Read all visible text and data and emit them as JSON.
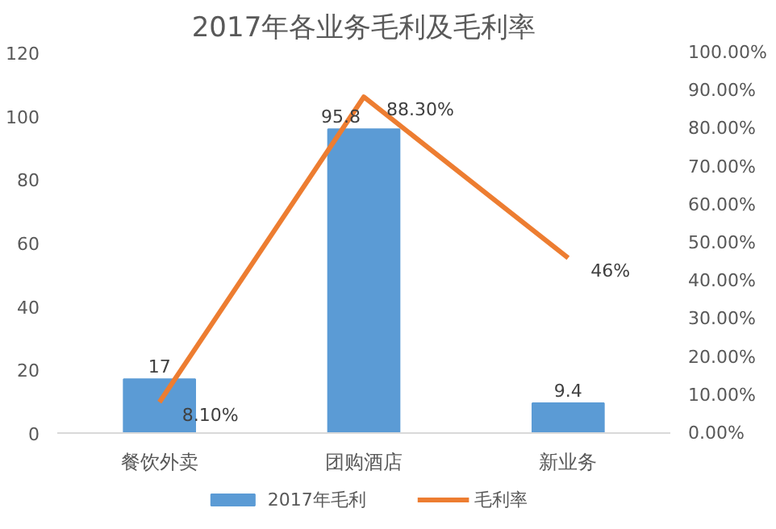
{
  "chart_data": {
    "type": "bar",
    "title": "2017年各业务毛利及毛利率",
    "categories": [
      "餐饮外卖",
      "团购酒店",
      "新业务"
    ],
    "series": [
      {
        "name": "2017年毛利",
        "color": "#5b9bd5",
        "values": [
          17,
          95.8,
          9.4
        ],
        "value_labels": [
          "17",
          "95.8",
          "9.4"
        ]
      },
      {
        "name": "毛利率",
        "type": "line",
        "axis": "y2",
        "color": "#ed7d31",
        "values": [
          8.1,
          88.3,
          46
        ],
        "value_labels": [
          "8.10%",
          "88.30%",
          "46%"
        ]
      }
    ],
    "ylim": [
      0,
      120
    ],
    "yticks": [
      0,
      20,
      40,
      60,
      80,
      100,
      120
    ],
    "y2lim": [
      0,
      100
    ],
    "y2ticks": [
      {
        "value": 0,
        "label": "0.00%"
      },
      {
        "value": 10,
        "label": "10.00%"
      },
      {
        "value": 20,
        "label": "20.00%"
      },
      {
        "value": 30,
        "label": "30.00%"
      },
      {
        "value": 40,
        "label": "40.00%"
      },
      {
        "value": 50,
        "label": "50.00%"
      },
      {
        "value": 60,
        "label": "60.00%"
      },
      {
        "value": 70,
        "label": "70.00%"
      },
      {
        "value": 80,
        "label": "80.00%"
      },
      {
        "value": 90,
        "label": "90.00%"
      },
      {
        "value": 100,
        "label": "100.00%"
      }
    ],
    "grid": false,
    "legend": "bottom",
    "marker": "none"
  }
}
